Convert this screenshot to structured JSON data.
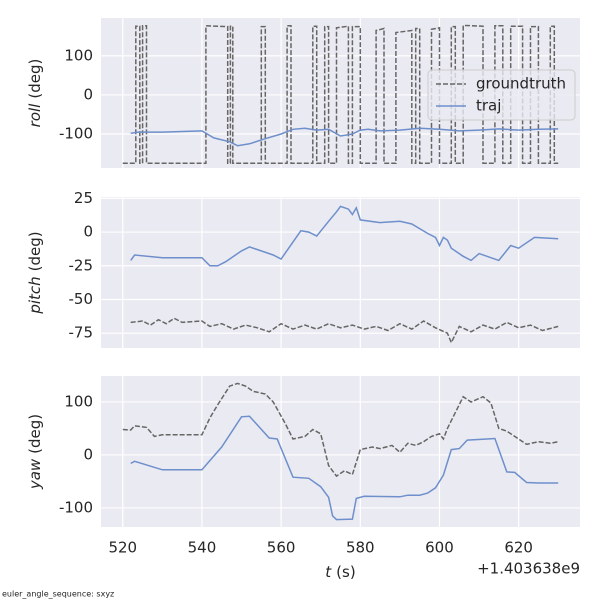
{
  "chart_data": [
    {
      "type": "line",
      "ylabel_var": "roll",
      "ylabel_unit": "(deg)",
      "xlim": [
        514.5,
        635.5
      ],
      "xticks": [
        520,
        540,
        560,
        580,
        600,
        620
      ],
      "ylim": [
        -187,
        197
      ],
      "yticks": [
        -100,
        0,
        100
      ],
      "grid": true,
      "legend": "upper right",
      "series": [
        {
          "name": "groundtruth",
          "color": "#666666",
          "dash": true,
          "x": [
            520,
            523.3,
            523.3,
            524.3,
            524.3,
            525,
            525,
            526,
            526,
            541,
            541,
            546.5,
            546.5,
            547.2,
            547.2,
            547.8,
            547.8,
            555,
            555,
            556,
            556,
            561.5,
            561.5,
            562.5,
            562.5,
            568,
            568,
            569,
            569,
            571,
            571,
            572,
            572,
            574,
            574,
            577,
            577,
            578,
            578,
            580,
            580,
            584,
            584,
            586,
            586,
            589,
            589,
            593,
            593,
            594,
            594,
            595,
            595,
            598,
            598,
            600,
            600,
            603,
            603,
            604,
            604,
            606,
            606,
            611,
            611,
            614,
            614,
            616,
            616,
            618,
            618,
            621,
            621,
            623,
            623,
            625,
            625,
            628,
            628,
            629,
            629,
            630
          ],
          "values": [
            -175,
            -175,
            176,
            176,
            -175,
            -175,
            177,
            177,
            -175,
            -175,
            177,
            175,
            -175,
            -175,
            176,
            176,
            -175,
            -175,
            175,
            175,
            -175,
            -175,
            177,
            177,
            -175,
            -175,
            176,
            176,
            -175,
            -175,
            175,
            175,
            -175,
            -175,
            172,
            176,
            -175,
            -175,
            175,
            175,
            -175,
            -175,
            165,
            170,
            -175,
            -175,
            160,
            165,
            -175,
            -175,
            170,
            170,
            -175,
            -175,
            168,
            172,
            -175,
            -175,
            175,
            175,
            -175,
            -175,
            178,
            176,
            -175,
            -175,
            177,
            177,
            -175,
            -175,
            176,
            176,
            -175,
            -175,
            175,
            175,
            -175,
            -175,
            176,
            176,
            -175,
            -175
          ]
        },
        {
          "name": "traj",
          "color": "#6e8fcb",
          "x": [
            522,
            524,
            530,
            540,
            543,
            547,
            549,
            552,
            556,
            560,
            563,
            566,
            569,
            572,
            575,
            578,
            580,
            582,
            585,
            590,
            595,
            600,
            605,
            610,
            615,
            620,
            625,
            630
          ],
          "values": [
            -98,
            -95,
            -95,
            -92,
            -110,
            -120,
            -130,
            -125,
            -112,
            -100,
            -88,
            -85,
            -90,
            -88,
            -105,
            -100,
            -90,
            -88,
            -92,
            -90,
            -85,
            -88,
            -92,
            -90,
            -87,
            -90,
            -88,
            -87
          ]
        }
      ]
    },
    {
      "type": "line",
      "ylabel_var": "pitch",
      "ylabel_unit": "(deg)",
      "xlim": [
        514.5,
        635.5
      ],
      "xticks": [
        520,
        540,
        560,
        580,
        600,
        620
      ],
      "ylim": [
        -86,
        26
      ],
      "yticks": [
        -75,
        -50,
        -25,
        0,
        25
      ],
      "grid": true,
      "series": [
        {
          "color": "#666666",
          "dash": true,
          "x": [
            522,
            525,
            527,
            529,
            531,
            533,
            535,
            540,
            542,
            545,
            548,
            551,
            554,
            557,
            560,
            563,
            566,
            569,
            572,
            575,
            578,
            581,
            584,
            587,
            590,
            593,
            596,
            599,
            602,
            603,
            605,
            608,
            611,
            614,
            617,
            620,
            623,
            626,
            630
          ],
          "values": [
            -67,
            -66,
            -69,
            -65,
            -68,
            -64,
            -67,
            -66,
            -70,
            -68,
            -72,
            -69,
            -71,
            -74,
            -68,
            -72,
            -69,
            -72,
            -68,
            -71,
            -69,
            -72,
            -70,
            -73,
            -68,
            -72,
            -66,
            -71,
            -75,
            -82,
            -70,
            -74,
            -69,
            -72,
            -67,
            -71,
            -69,
            -73,
            -70
          ]
        },
        {
          "color": "#6e8fcb",
          "x": [
            522,
            523,
            530,
            537,
            540,
            542,
            544,
            546,
            550,
            552,
            558,
            560,
            565,
            567,
            569,
            572,
            574,
            575,
            577,
            578,
            579,
            580,
            585,
            590,
            593,
            597,
            599,
            600,
            601,
            602,
            603,
            606,
            608,
            610,
            613,
            615,
            618,
            620,
            624,
            630
          ],
          "values": [
            -21,
            -17,
            -19,
            -19,
            -19,
            -25,
            -25,
            -22,
            -14,
            -11,
            -17,
            -20,
            1,
            0,
            -3,
            8,
            15,
            19,
            17,
            13,
            18,
            9,
            7,
            8,
            6,
            -1,
            -4,
            -10,
            -4,
            -6,
            -12,
            -18,
            -21,
            -16,
            -19,
            -21,
            -10,
            -12,
            -4,
            -5
          ]
        }
      ]
    },
    {
      "type": "line",
      "ylabel_var": "yaw",
      "ylabel_unit": "(deg)",
      "xlabel_var": "t",
      "xlabel_unit": "(s)",
      "x_offset": "+1.403638e9",
      "xlim": [
        514.5,
        635.5
      ],
      "xticks": [
        520,
        540,
        560,
        580,
        600,
        620
      ],
      "ylim": [
        -136,
        149
      ],
      "yticks": [
        -100,
        0,
        100
      ],
      "grid": true,
      "series": [
        {
          "color": "#666666",
          "dash": true,
          "x": [
            520,
            522,
            523,
            526,
            528,
            530,
            540,
            542,
            544,
            547,
            549,
            551,
            553,
            556,
            558,
            561,
            563,
            566,
            568,
            570,
            572,
            574,
            576,
            578,
            580,
            583,
            585,
            588,
            590,
            592,
            594,
            596,
            598,
            600,
            601,
            602,
            604,
            606,
            608,
            611,
            613,
            615,
            617,
            619,
            622,
            625,
            628,
            630
          ],
          "values": [
            48,
            47,
            55,
            52,
            35,
            38,
            38,
            70,
            95,
            130,
            135,
            130,
            120,
            115,
            100,
            60,
            30,
            35,
            48,
            40,
            -20,
            -40,
            -30,
            -37,
            10,
            15,
            12,
            18,
            5,
            22,
            18,
            25,
            35,
            40,
            30,
            50,
            80,
            110,
            100,
            110,
            98,
            50,
            45,
            35,
            20,
            25,
            22,
            25
          ]
        },
        {
          "color": "#6e8fcb",
          "x": [
            522,
            523,
            530,
            540,
            545,
            550,
            552,
            557,
            559,
            563,
            567,
            570,
            572,
            573,
            574,
            578,
            579,
            581,
            590,
            592,
            595,
            597,
            599,
            601,
            603,
            605,
            607,
            612,
            614,
            617,
            619,
            622,
            625,
            630
          ],
          "values": [
            -16,
            -12,
            -28,
            -28,
            15,
            72,
            73,
            32,
            30,
            -42,
            -44,
            -60,
            -80,
            -115,
            -122,
            -121,
            -82,
            -78,
            -79,
            -76,
            -76,
            -72,
            -62,
            -38,
            10,
            12,
            28,
            30,
            31,
            -32,
            -33,
            -52,
            -53,
            -53
          ]
        }
      ]
    }
  ],
  "footnote": "euler_angle_sequence: sxyz"
}
